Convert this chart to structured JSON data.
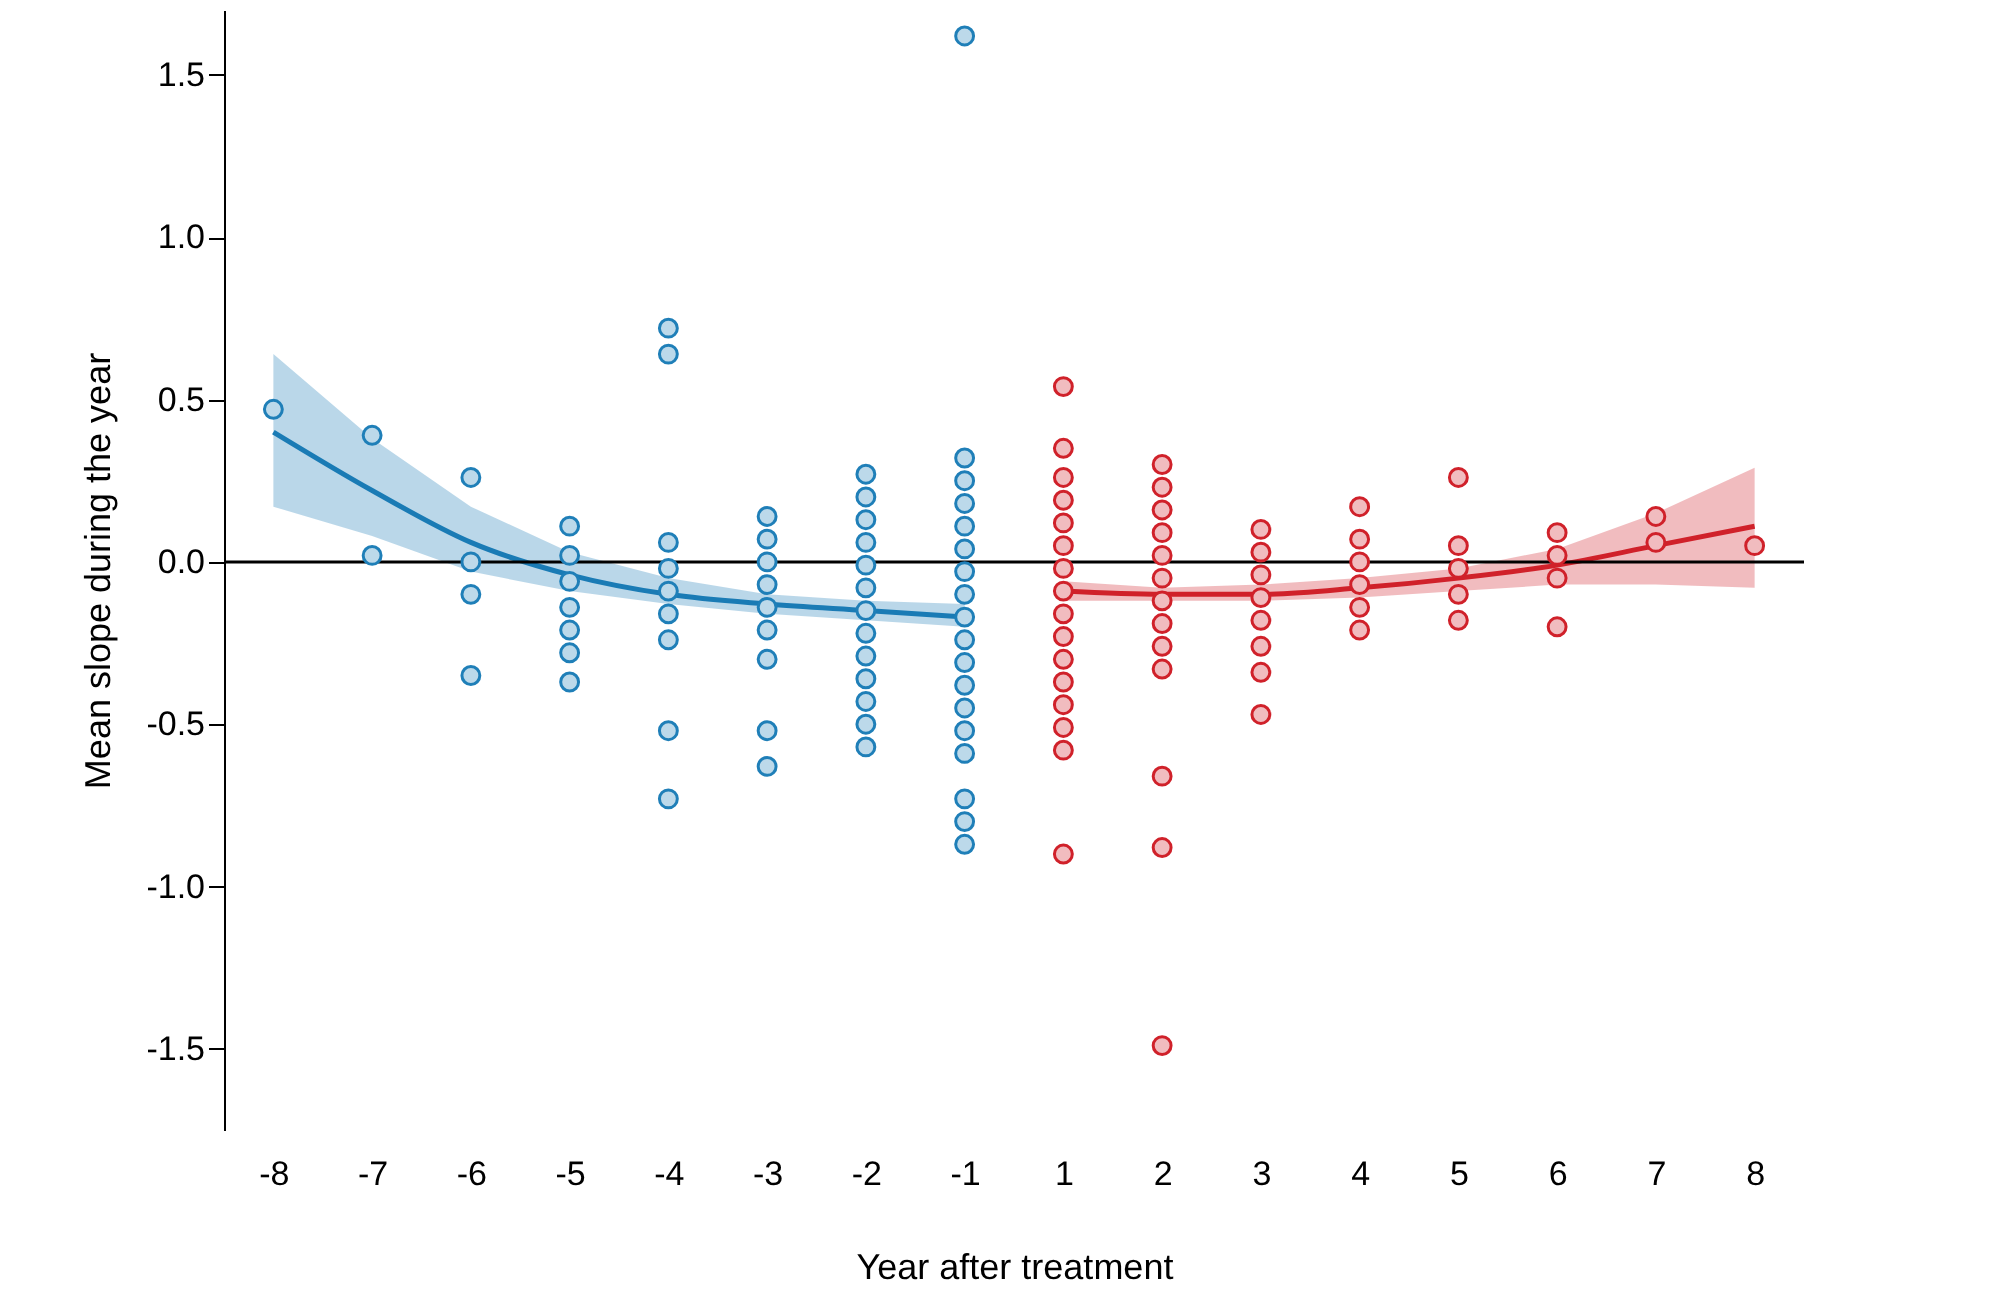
{
  "chart_data": {
    "type": "scatter",
    "xlabel": "Year after treatment",
    "ylabel": "Mean slope during the year",
    "categories": [
      "-8",
      "-7",
      "-6",
      "-5",
      "-4",
      "-3",
      "-2",
      "-1",
      "1",
      "2",
      "3",
      "4",
      "5",
      "6",
      "7",
      "8"
    ],
    "ylim": [
      -1.75,
      1.7
    ],
    "yticks": [
      {
        "value": -1.5,
        "label": "-1.5"
      },
      {
        "value": -1,
        "label": "-1.0"
      },
      {
        "value": -0.5,
        "label": "-0.5"
      },
      {
        "value": 0,
        "label": "0.0"
      },
      0.5,
      {
        "value": 1,
        "label": "1.0"
      },
      1.5
    ],
    "grid": false,
    "ref_lines": [
      {
        "axis": "y",
        "value": 0,
        "color": "#000000"
      }
    ],
    "series": [
      {
        "marker": "circle",
        "color": "#1f7fb8",
        "x": [
          "-8",
          "-7",
          "-7",
          "-6",
          "-6",
          "-6",
          "-6",
          "-5",
          "-5",
          "-5",
          "-5",
          "-5",
          "-5",
          "-5",
          "-4",
          "-4",
          "-4",
          "-4",
          "-4",
          "-4",
          "-4",
          "-4",
          "-4",
          "-3",
          "-3",
          "-3",
          "-3",
          "-3",
          "-3",
          "-3",
          "-3",
          "-3",
          "-2",
          "-2",
          "-2",
          "-2",
          "-2",
          "-2",
          "-2",
          "-2",
          "-2",
          "-2",
          "-2",
          "-2",
          "-2",
          "-1",
          "-1",
          "-1",
          "-1",
          "-1",
          "-1",
          "-1",
          "-1",
          "-1",
          "-1",
          "-1",
          "-1",
          "-1",
          "-1",
          "-1",
          "-1",
          "-1",
          "-1"
        ],
        "values": [
          0.47,
          0.39,
          0.02,
          0.26,
          0.0,
          -0.1,
          -0.35,
          0.11,
          0.02,
          -0.06,
          -0.14,
          -0.21,
          -0.28,
          -0.37,
          0.72,
          0.64,
          0.06,
          -0.02,
          -0.09,
          -0.16,
          -0.24,
          -0.52,
          -0.73,
          0.14,
          0.07,
          0.0,
          -0.07,
          -0.14,
          -0.21,
          -0.3,
          -0.52,
          -0.63,
          0.27,
          0.2,
          0.13,
          0.06,
          -0.01,
          -0.08,
          -0.15,
          -0.22,
          -0.29,
          -0.36,
          -0.43,
          -0.5,
          -0.57,
          1.62,
          0.32,
          0.25,
          0.18,
          0.11,
          0.04,
          -0.03,
          -0.1,
          -0.17,
          -0.24,
          -0.31,
          -0.38,
          -0.45,
          -0.52,
          -0.59,
          -0.73,
          -0.8,
          -0.87
        ]
      },
      {
        "marker": "circle",
        "color": "#d0212a",
        "x": [
          "1",
          "1",
          "1",
          "1",
          "1",
          "1",
          "1",
          "1",
          "1",
          "1",
          "1",
          "1",
          "1",
          "1",
          "1",
          "1",
          "2",
          "2",
          "2",
          "2",
          "2",
          "2",
          "2",
          "2",
          "2",
          "2",
          "2",
          "2",
          "2",
          "3",
          "3",
          "3",
          "3",
          "3",
          "3",
          "3",
          "3",
          "4",
          "4",
          "4",
          "4",
          "4",
          "4",
          "5",
          "5",
          "5",
          "5",
          "5",
          "6",
          "6",
          "6",
          "6",
          "7",
          "7",
          "8"
        ],
        "values": [
          0.54,
          0.35,
          0.26,
          0.19,
          0.12,
          0.05,
          -0.02,
          -0.09,
          -0.16,
          -0.23,
          -0.3,
          -0.37,
          -0.44,
          -0.51,
          -0.58,
          -0.9,
          0.3,
          0.23,
          0.16,
          0.09,
          0.02,
          -0.05,
          -0.12,
          -0.19,
          -0.26,
          -0.33,
          -0.66,
          -0.88,
          -1.49,
          0.1,
          0.03,
          -0.04,
          -0.11,
          -0.18,
          -0.26,
          -0.34,
          -0.47,
          0.17,
          0.07,
          0.0,
          -0.07,
          -0.14,
          -0.21,
          0.26,
          0.05,
          -0.02,
          -0.1,
          -0.18,
          0.09,
          0.02,
          -0.05,
          -0.2,
          0.14,
          0.06,
          0.05
        ]
      },
      {
        "type": "line",
        "marker": "none",
        "color": "#1a7bb5",
        "x": [
          "-8",
          "-7",
          "-6",
          "-5",
          "-4",
          "-3",
          "-2",
          "-1"
        ],
        "values": [
          0.4,
          0.22,
          0.06,
          -0.04,
          -0.1,
          -0.13,
          -0.15,
          -0.17
        ],
        "lower": [
          0.17,
          0.08,
          -0.03,
          -0.09,
          -0.13,
          -0.16,
          -0.18,
          -0.2
        ],
        "upper": [
          0.64,
          0.38,
          0.17,
          0.03,
          -0.05,
          -0.1,
          -0.12,
          -0.13
        ]
      },
      {
        "type": "line",
        "marker": "none",
        "color": "#d0212a",
        "x": [
          "1",
          "2",
          "3",
          "4",
          "5",
          "6",
          "7",
          "8"
        ],
        "values": [
          -0.09,
          -0.1,
          -0.1,
          -0.08,
          -0.05,
          -0.01,
          0.05,
          0.11
        ],
        "lower": [
          -0.12,
          -0.12,
          -0.12,
          -0.11,
          -0.09,
          -0.07,
          -0.07,
          -0.08
        ],
        "upper": [
          -0.06,
          -0.08,
          -0.07,
          -0.05,
          -0.02,
          0.04,
          0.15,
          0.29
        ]
      }
    ]
  }
}
